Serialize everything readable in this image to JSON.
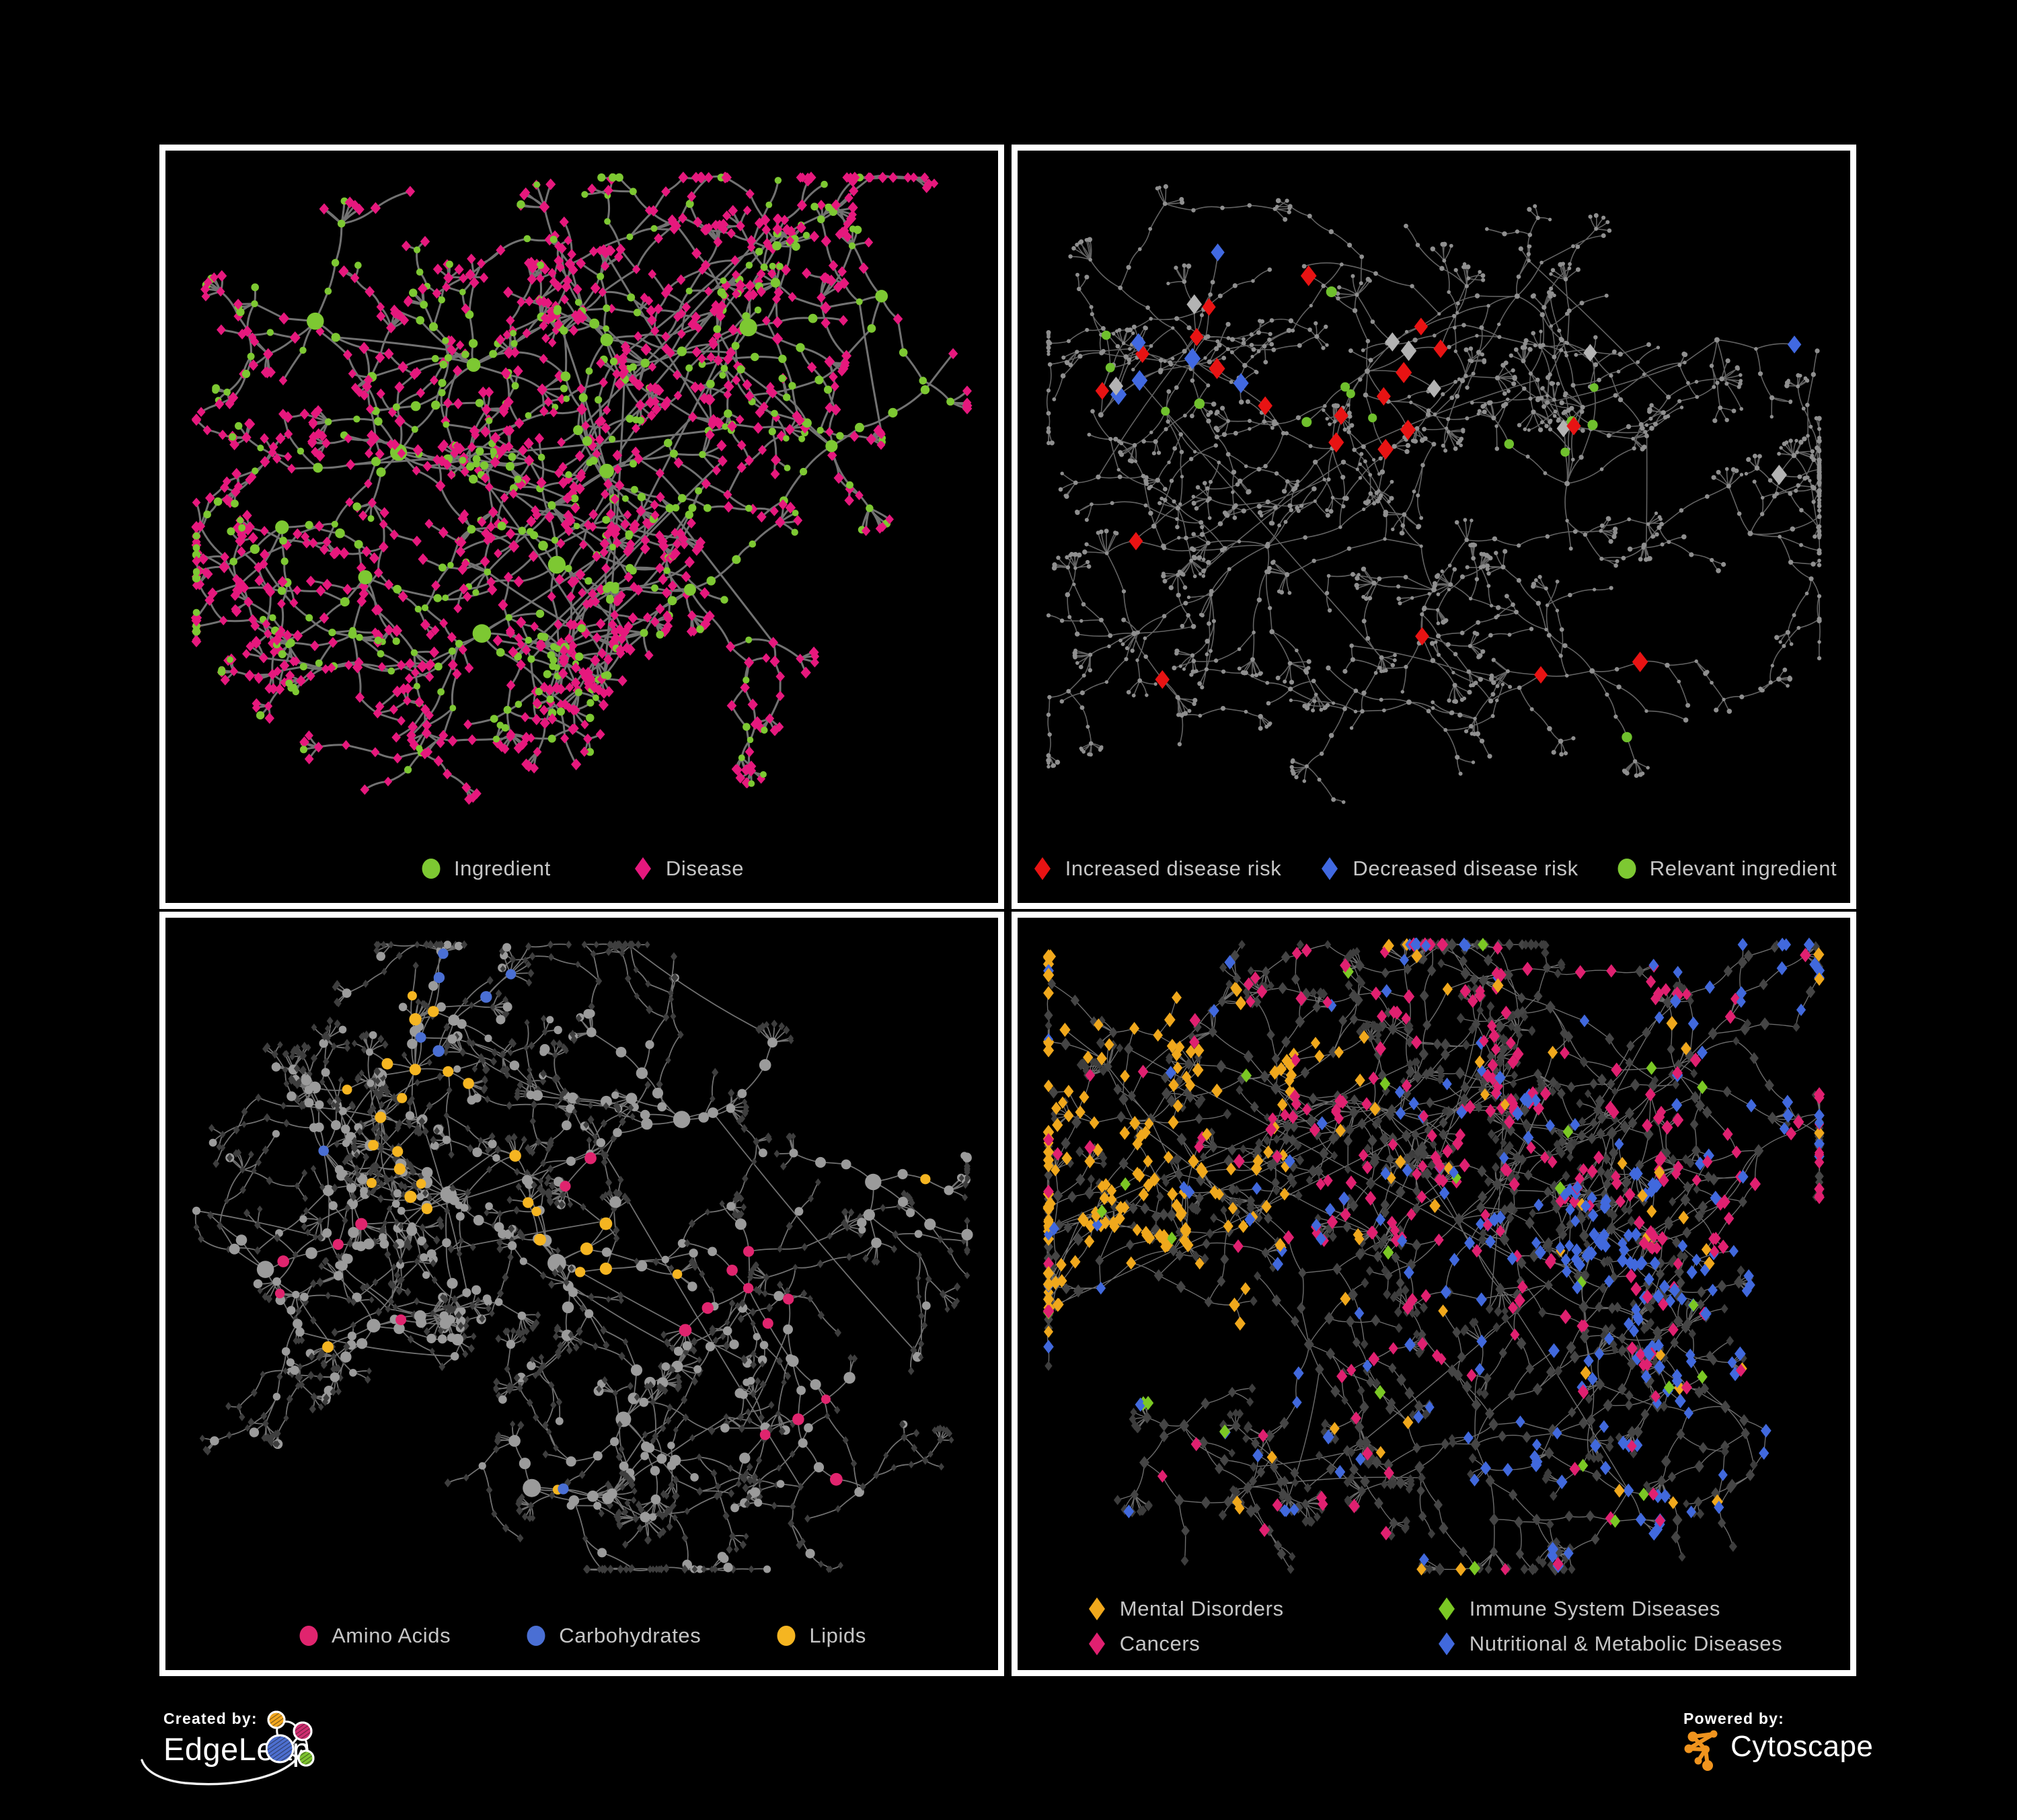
{
  "figure": {
    "background": "#000000",
    "panel_border": "#ffffff"
  },
  "panels": [
    {
      "id": "ingredient-disease",
      "legend": [
        {
          "label": "Ingredient",
          "shape": "circle",
          "color": "#7dc832"
        },
        {
          "label": "Disease",
          "shape": "diamond",
          "color": "#e6187d"
        }
      ],
      "legend_gap": 120,
      "net": {
        "style": "ingredient",
        "seed": 11,
        "edgeColor": "#787878",
        "edgeWidth": 3,
        "edgeOpacity": 0.95,
        "palette": {
          "green": "#7dc832",
          "pink": "#e6187d"
        },
        "hubs": [
          [
            0.37,
            0.3,
            9
          ],
          [
            0.53,
            0.26,
            8
          ],
          [
            0.28,
            0.44,
            8
          ],
          [
            0.53,
            0.47,
            7
          ],
          [
            0.7,
            0.24,
            6
          ],
          [
            0.8,
            0.43,
            5
          ],
          [
            0.18,
            0.23,
            5
          ],
          [
            0.63,
            0.66,
            6
          ],
          [
            0.38,
            0.73,
            5
          ],
          [
            0.14,
            0.56,
            4
          ],
          [
            0.86,
            0.19,
            4
          ],
          [
            0.24,
            0.64,
            4
          ],
          [
            0.47,
            0.62,
            5
          ]
        ],
        "step": 46,
        "maxDepth": 3,
        "subProb": 0.4,
        "fanProb": 0.5,
        "fanMax": 6,
        "extraLinks": 55,
        "linkDist": 340
      }
    },
    {
      "id": "disease-risk",
      "legend": [
        {
          "label": "Increased disease risk",
          "shape": "diamond",
          "color": "#e81313"
        },
        {
          "label": "Decreased disease risk",
          "shape": "diamond",
          "color": "#4169e1"
        },
        {
          "label": "Relevant ingredient",
          "shape": "circle",
          "color": "#7dc832"
        }
      ],
      "legend_gap": 55,
      "net": {
        "style": "risk",
        "seed": 27,
        "edgeColor": "#6d6d6d",
        "edgeWidth": 1.6,
        "edgeOpacity": 0.9,
        "palette": {
          "base": "#8f8f8f",
          "red": "#e81313",
          "blue": "#4169e1",
          "grayD": "#b3b3b3",
          "green": "#6fc02d"
        },
        "hubs": [
          [
            0.42,
            0.31,
            9,
            "core"
          ],
          [
            0.21,
            0.29,
            8,
            "mix"
          ],
          [
            0.6,
            0.19,
            6,
            ""
          ],
          [
            0.66,
            0.49,
            7,
            "greenish"
          ],
          [
            0.3,
            0.59,
            6,
            ""
          ],
          [
            0.5,
            0.66,
            6,
            ""
          ],
          [
            0.84,
            0.26,
            4,
            "bluepair"
          ],
          [
            0.69,
            0.79,
            5,
            "redfew"
          ],
          [
            0.14,
            0.73,
            4,
            ""
          ],
          [
            0.88,
            0.57,
            4,
            ""
          ],
          [
            0.47,
            0.84,
            4,
            ""
          ],
          [
            0.1,
            0.38,
            4,
            "mix"
          ]
        ],
        "step": 44,
        "maxDepth": 3,
        "subProb": 0.42,
        "fanProb": 0.55,
        "fanMax": 7,
        "extraLinks": 45,
        "linkDist": 320
      }
    },
    {
      "id": "nutrient-classes",
      "legend": [
        {
          "label": "Amino Acids",
          "shape": "circle",
          "color": "#e0246e"
        },
        {
          "label": "Carbohydrates",
          "shape": "circle",
          "color": "#4a6fd4"
        },
        {
          "label": "Lipids",
          "shape": "circle",
          "color": "#f5b521"
        }
      ],
      "legend_gap": 110,
      "net": {
        "style": "nutrients",
        "seed": 33,
        "edgeColor": "#8d8d8d",
        "edgeWidth": 1.8,
        "edgeOpacity": 0.8,
        "palette": {
          "gray": "#9b9b9b",
          "dark": "#3e3e3e",
          "orange": "#f5b521",
          "pink": "#e0246e",
          "blue": "#4a6fd4"
        },
        "hubs": [
          [
            0.3,
            0.2,
            9,
            "lipidcarb"
          ],
          [
            0.19,
            0.33,
            8,
            ""
          ],
          [
            0.34,
            0.4,
            8,
            "lipid"
          ],
          [
            0.47,
            0.51,
            7,
            "lipid"
          ],
          [
            0.62,
            0.28,
            6,
            ""
          ],
          [
            0.7,
            0.55,
            6,
            "amino"
          ],
          [
            0.25,
            0.61,
            6,
            ""
          ],
          [
            0.55,
            0.76,
            6,
            ""
          ],
          [
            0.76,
            0.76,
            5,
            "amino"
          ],
          [
            0.85,
            0.38,
            4,
            ""
          ],
          [
            0.12,
            0.52,
            4,
            "amino"
          ],
          [
            0.44,
            0.87,
            4,
            ""
          ]
        ],
        "step": 45,
        "maxDepth": 3,
        "subProb": 0.4,
        "fanProb": 0.6,
        "fanMax": 8,
        "extraLinks": 40,
        "linkDist": 300
      }
    },
    {
      "id": "disease-classes",
      "legend": [
        {
          "label": "Mental Disorders",
          "shape": "diamond",
          "color": "#f0a81c"
        },
        {
          "label": "Immune System Diseases",
          "shape": "diamond",
          "color": "#7bc824"
        },
        {
          "label": "Cancers",
          "shape": "diamond",
          "color": "#e02070"
        },
        {
          "label": "Nutritional & Metabolic Diseases",
          "shape": "diamond",
          "color": "#4169dd"
        }
      ],
      "legend_rows": 2,
      "net": {
        "style": "diseases",
        "seed": 44,
        "edgeColor": "#9a9a9a",
        "edgeWidth": 1.4,
        "edgeOpacity": 0.7,
        "palette": {
          "dark": "#3d3d3d",
          "mid": "#454545",
          "orange": "#f0a81c",
          "magenta": "#e02070",
          "blue": "#4169dd",
          "green": "#7bc824"
        },
        "hubs": [
          [
            0.16,
            0.28,
            9,
            "mental"
          ],
          [
            0.31,
            0.23,
            7,
            ""
          ],
          [
            0.46,
            0.27,
            8,
            "cancer"
          ],
          [
            0.53,
            0.44,
            8,
            "cancer"
          ],
          [
            0.68,
            0.58,
            7,
            "nutri"
          ],
          [
            0.76,
            0.24,
            6,
            "nutri2"
          ],
          [
            0.89,
            0.33,
            5,
            "cancer2"
          ],
          [
            0.35,
            0.64,
            6,
            ""
          ],
          [
            0.55,
            0.8,
            5,
            ""
          ],
          [
            0.2,
            0.77,
            5,
            ""
          ],
          [
            0.85,
            0.74,
            5,
            "nutri2"
          ],
          [
            0.64,
            0.1,
            5,
            ""
          ],
          [
            0.1,
            0.55,
            4,
            "mental2"
          ]
        ],
        "step": 44,
        "maxDepth": 3,
        "subProb": 0.42,
        "fanProb": 0.55,
        "fanMax": 8,
        "extraLinks": 55,
        "linkDist": 300
      }
    }
  ],
  "footer": {
    "created_by_label": "Created by:",
    "edgeleap_name": "EdgeLeap",
    "powered_by_label": "Powered by:",
    "cytoscape_name": "Cytoscape",
    "edgeleap_colors": {
      "orange": "#f2a71f",
      "magenta": "#cf2d70",
      "blue": "#4d6fd0",
      "green": "#7dc32e"
    },
    "cytoscape_color": "#f0941e"
  }
}
